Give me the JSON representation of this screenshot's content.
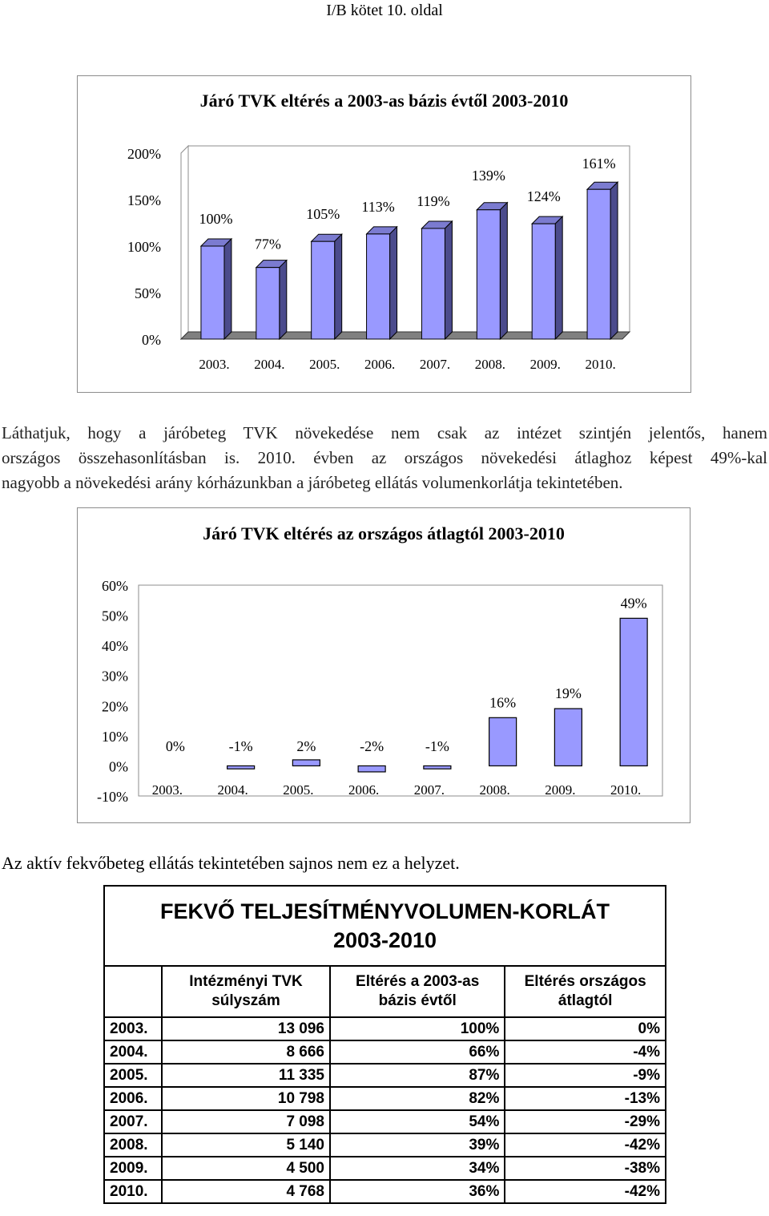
{
  "header": "I/B kötet 10. oldal",
  "chart_data": [
    {
      "type": "bar",
      "title": "Járó TVK eltérés a 2003-as bázis évtől 2003-2010",
      "categories": [
        "2003.",
        "2004.",
        "2005.",
        "2006.",
        "2007.",
        "2008.",
        "2009.",
        "2010."
      ],
      "values": [
        100,
        77,
        105,
        113,
        119,
        139,
        124,
        161
      ],
      "data_labels": [
        "100%",
        "77%",
        "105%",
        "113%",
        "119%",
        "139%",
        "124%",
        "161%"
      ],
      "ylim": [
        0,
        200
      ],
      "y_ticks": [
        "0%",
        "50%",
        "100%",
        "150%",
        "200%"
      ],
      "y_tick_values": [
        0,
        50,
        100,
        150,
        200
      ],
      "bar_color": "#9999ff",
      "style": "3d"
    },
    {
      "type": "bar",
      "title": "Járó TVK eltérés az országos átlagtól 2003-2010",
      "categories": [
        "2003.",
        "2004.",
        "2005.",
        "2006.",
        "2007.",
        "2008.",
        "2009.",
        "2010."
      ],
      "values": [
        0,
        -1,
        2,
        -2,
        -1,
        16,
        19,
        49
      ],
      "data_labels": [
        "0%",
        "-1%",
        "2%",
        "-2%",
        "-1%",
        "16%",
        "19%",
        "49%"
      ],
      "ylim": [
        -10,
        60
      ],
      "y_ticks": [
        "-10%",
        "0%",
        "10%",
        "20%",
        "30%",
        "40%",
        "50%",
        "60%"
      ],
      "y_tick_values": [
        -10,
        0,
        10,
        20,
        30,
        40,
        50,
        60
      ],
      "bar_color": "#9999ff"
    }
  ],
  "paragraph": [
    "Láthatjuk, hogy a járóbeteg TVK növekedése nem csak az intézet szintjén jelentős, hanem",
    "országos összehasonlításban is. 2010. évben az országos növekedési átlaghoz képest 49%-kal",
    "nagyobb a növekedési arány kórházunkban a járóbeteg ellátás volumenkorlátja tekintetében."
  ],
  "note": "Az aktív fekvőbeteg ellátás tekintetében sajnos nem ez a helyzet.",
  "table": {
    "title_line1": "FEKVŐ TELJESÍTMÉNYVOLUMEN-KORLÁT",
    "title_line2": "2003-2010",
    "columns": [
      "Intézményi TVK súlyszám",
      "Eltérés a 2003-as bázis évtől",
      "Eltérés országos átlagtól"
    ],
    "rows": [
      [
        "2003.",
        "13 096",
        "100%",
        "0%"
      ],
      [
        "2004.",
        "8 666",
        "66%",
        "-4%"
      ],
      [
        "2005.",
        "11 335",
        "87%",
        "-9%"
      ],
      [
        "2006.",
        "10 798",
        "82%",
        "-13%"
      ],
      [
        "2007.",
        "7 098",
        "54%",
        "-29%"
      ],
      [
        "2008.",
        "5 140",
        "39%",
        "-42%"
      ],
      [
        "2009.",
        "4 500",
        "34%",
        "-38%"
      ],
      [
        "2010.",
        "4 768",
        "36%",
        "-42%"
      ]
    ]
  }
}
